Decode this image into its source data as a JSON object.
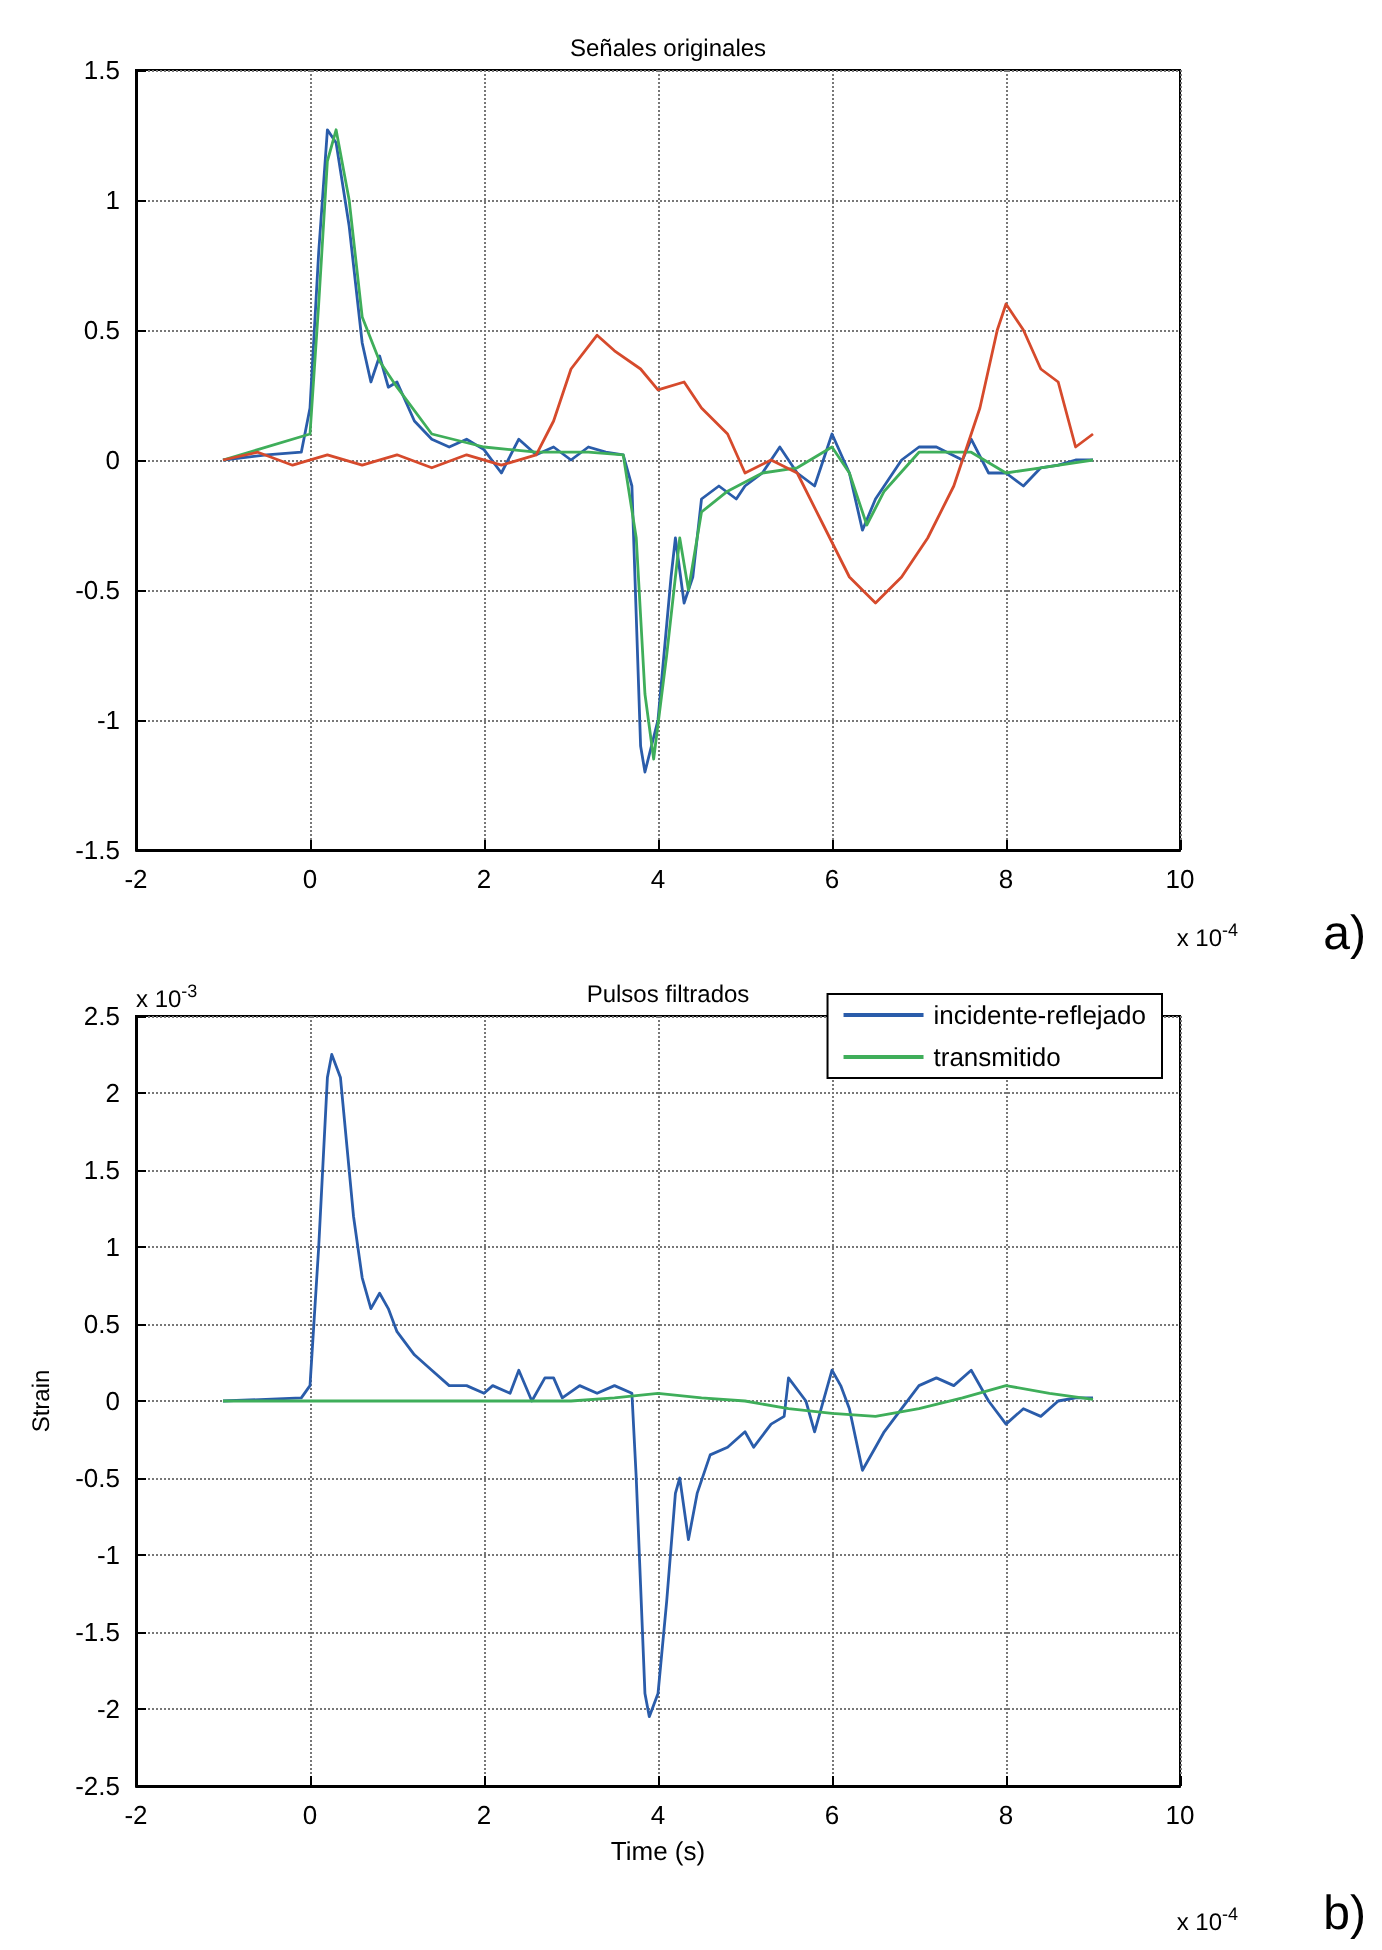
{
  "chart_data": [
    {
      "type": "line",
      "title": "Señales originales",
      "xlim": [
        -2,
        10
      ],
      "xticks": [
        -2,
        0,
        2,
        4,
        6,
        8,
        10
      ],
      "ylim": [
        -1.5,
        1.5
      ],
      "yticks": [
        -1.5,
        -1,
        -0.5,
        0,
        0.5,
        1,
        1.5
      ],
      "grid": true,
      "legend": false,
      "marker": "none",
      "line_style": "solid",
      "annotations": [
        "x 10$^{-4}$",
        "a)"
      ],
      "series": [
        {
          "color": "#2a5caa",
          "x": [
            -1,
            -0.5,
            -0.1,
            0,
            0.1,
            0.2,
            0.3,
            0.45,
            0.6,
            0.7,
            0.8,
            0.9,
            1.0,
            1.2,
            1.4,
            1.6,
            1.8,
            2.0,
            2.2,
            2.4,
            2.6,
            2.8,
            3.0,
            3.2,
            3.4,
            3.6,
            3.7,
            3.75,
            3.8,
            3.85,
            4.0,
            4.15,
            4.2,
            4.3,
            4.4,
            4.5,
            4.7,
            4.9,
            5.0,
            5.2,
            5.4,
            5.6,
            5.8,
            6.0,
            6.2,
            6.35,
            6.5,
            6.8,
            7.0,
            7.2,
            7.5,
            7.6,
            7.8,
            8.0,
            8.2,
            8.4,
            8.6,
            8.8,
            9.0
          ],
          "values": [
            0,
            0.02,
            0.03,
            0.2,
            0.8,
            1.27,
            1.22,
            0.9,
            0.45,
            0.3,
            0.4,
            0.28,
            0.3,
            0.15,
            0.08,
            0.05,
            0.08,
            0.04,
            -0.05,
            0.08,
            0.02,
            0.05,
            0,
            0.05,
            0.03,
            0.02,
            -0.1,
            -0.6,
            -1.1,
            -1.2,
            -1.0,
            -0.45,
            -0.3,
            -0.55,
            -0.45,
            -0.15,
            -0.1,
            -0.15,
            -0.1,
            -0.05,
            0.05,
            -0.05,
            -0.1,
            0.1,
            -0.05,
            -0.27,
            -0.15,
            0,
            0.05,
            0.05,
            0,
            0.08,
            -0.05,
            -0.05,
            -0.1,
            -0.03,
            -0.02,
            0,
            0
          ]
        },
        {
          "color": "#3fae5a",
          "x": [
            -1,
            0,
            0.1,
            0.2,
            0.3,
            0.45,
            0.6,
            0.8,
            1.0,
            1.4,
            2.0,
            2.6,
            3.2,
            3.6,
            3.75,
            3.85,
            3.95,
            4.1,
            4.25,
            4.35,
            4.5,
            4.8,
            5.2,
            5.6,
            6.0,
            6.2,
            6.4,
            6.6,
            7.0,
            7.6,
            8.0,
            8.4,
            9.0
          ],
          "values": [
            0,
            0.1,
            0.6,
            1.15,
            1.27,
            1.0,
            0.55,
            0.38,
            0.28,
            0.1,
            0.05,
            0.03,
            0.03,
            0.02,
            -0.3,
            -0.9,
            -1.15,
            -0.75,
            -0.3,
            -0.5,
            -0.2,
            -0.12,
            -0.05,
            -0.03,
            0.05,
            -0.05,
            -0.25,
            -0.12,
            0.03,
            0.03,
            -0.05,
            -0.03,
            0
          ]
        },
        {
          "color": "#d64a2c",
          "x": [
            -1,
            -0.6,
            -0.2,
            0.2,
            0.6,
            1.0,
            1.4,
            1.8,
            2.2,
            2.6,
            2.8,
            3.0,
            3.3,
            3.5,
            3.8,
            4.0,
            4.3,
            4.5,
            4.8,
            5.0,
            5.3,
            5.6,
            5.9,
            6.2,
            6.5,
            6.8,
            7.1,
            7.4,
            7.7,
            7.9,
            8.0,
            8.2,
            8.4,
            8.6,
            8.8,
            9.0
          ],
          "values": [
            0,
            0.03,
            -0.02,
            0.02,
            -0.02,
            0.02,
            -0.03,
            0.02,
            -0.02,
            0.02,
            0.15,
            0.35,
            0.48,
            0.42,
            0.35,
            0.27,
            0.3,
            0.2,
            0.1,
            -0.05,
            0,
            -0.05,
            -0.25,
            -0.45,
            -0.55,
            -0.45,
            -0.3,
            -0.1,
            0.2,
            0.5,
            0.6,
            0.5,
            0.35,
            0.3,
            0.05,
            0.1
          ]
        }
      ]
    },
    {
      "type": "line",
      "title": "Pulsos filtrados",
      "xlabel": "Time (s)",
      "ylabel": "Strain",
      "xlim": [
        -2,
        10
      ],
      "xticks": [
        -2,
        0,
        2,
        4,
        6,
        8,
        10
      ],
      "ylim": [
        -2.5,
        2.5
      ],
      "yticks": [
        -2.5,
        -2,
        -1.5,
        -1,
        -0.5,
        0,
        0.5,
        1,
        1.5,
        2,
        2.5
      ],
      "grid": true,
      "legend": "top right",
      "marker": "none",
      "line_style": "solid",
      "annotations": [
        "x 10$^{-3}$",
        "x 10$^{-4}$",
        "b)"
      ],
      "series": [
        {
          "name": "incidente-reflejado",
          "color": "#2a5caa",
          "x": [
            -1,
            -0.1,
            0,
            0.1,
            0.2,
            0.25,
            0.35,
            0.5,
            0.6,
            0.7,
            0.8,
            0.9,
            1.0,
            1.2,
            1.4,
            1.6,
            1.8,
            2.0,
            2.1,
            2.3,
            2.4,
            2.55,
            2.7,
            2.8,
            2.9,
            3.1,
            3.3,
            3.5,
            3.7,
            3.75,
            3.8,
            3.85,
            3.9,
            4.0,
            4.1,
            4.2,
            4.25,
            4.35,
            4.45,
            4.6,
            4.8,
            5.0,
            5.1,
            5.3,
            5.45,
            5.5,
            5.7,
            5.8,
            6.0,
            6.1,
            6.2,
            6.35,
            6.5,
            6.6,
            6.8,
            7.0,
            7.2,
            7.4,
            7.6,
            7.8,
            8.0,
            8.2,
            8.4,
            8.6,
            8.8,
            9.0
          ],
          "values": [
            0,
            0.02,
            0.1,
            1.0,
            2.1,
            2.25,
            2.1,
            1.2,
            0.8,
            0.6,
            0.7,
            0.6,
            0.45,
            0.3,
            0.2,
            0.1,
            0.1,
            0.05,
            0.1,
            0.05,
            0.2,
            0,
            0.15,
            0.15,
            0.02,
            0.1,
            0.05,
            0.1,
            0.05,
            -0.5,
            -1.2,
            -1.9,
            -2.05,
            -1.9,
            -1.3,
            -0.6,
            -0.5,
            -0.9,
            -0.6,
            -0.35,
            -0.3,
            -0.2,
            -0.3,
            -0.15,
            -0.1,
            0.15,
            0,
            -0.2,
            0.2,
            0.1,
            -0.05,
            -0.45,
            -0.3,
            -0.2,
            -0.05,
            0.1,
            0.15,
            0.1,
            0.2,
            0,
            -0.15,
            -0.05,
            -0.1,
            0,
            0.02,
            0.02
          ]
        },
        {
          "name": "transmitido",
          "color": "#3fae5a",
          "x": [
            -1,
            0,
            1,
            2,
            3,
            3.5,
            4.0,
            4.5,
            5.0,
            5.5,
            6.0,
            6.5,
            7.0,
            7.5,
            8.0,
            8.5,
            9.0
          ],
          "values": [
            0,
            0,
            0,
            0,
            0,
            0.02,
            0.05,
            0.02,
            0,
            -0.05,
            -0.08,
            -0.1,
            -0.05,
            0.02,
            0.1,
            0.05,
            0.01
          ]
        }
      ]
    }
  ]
}
